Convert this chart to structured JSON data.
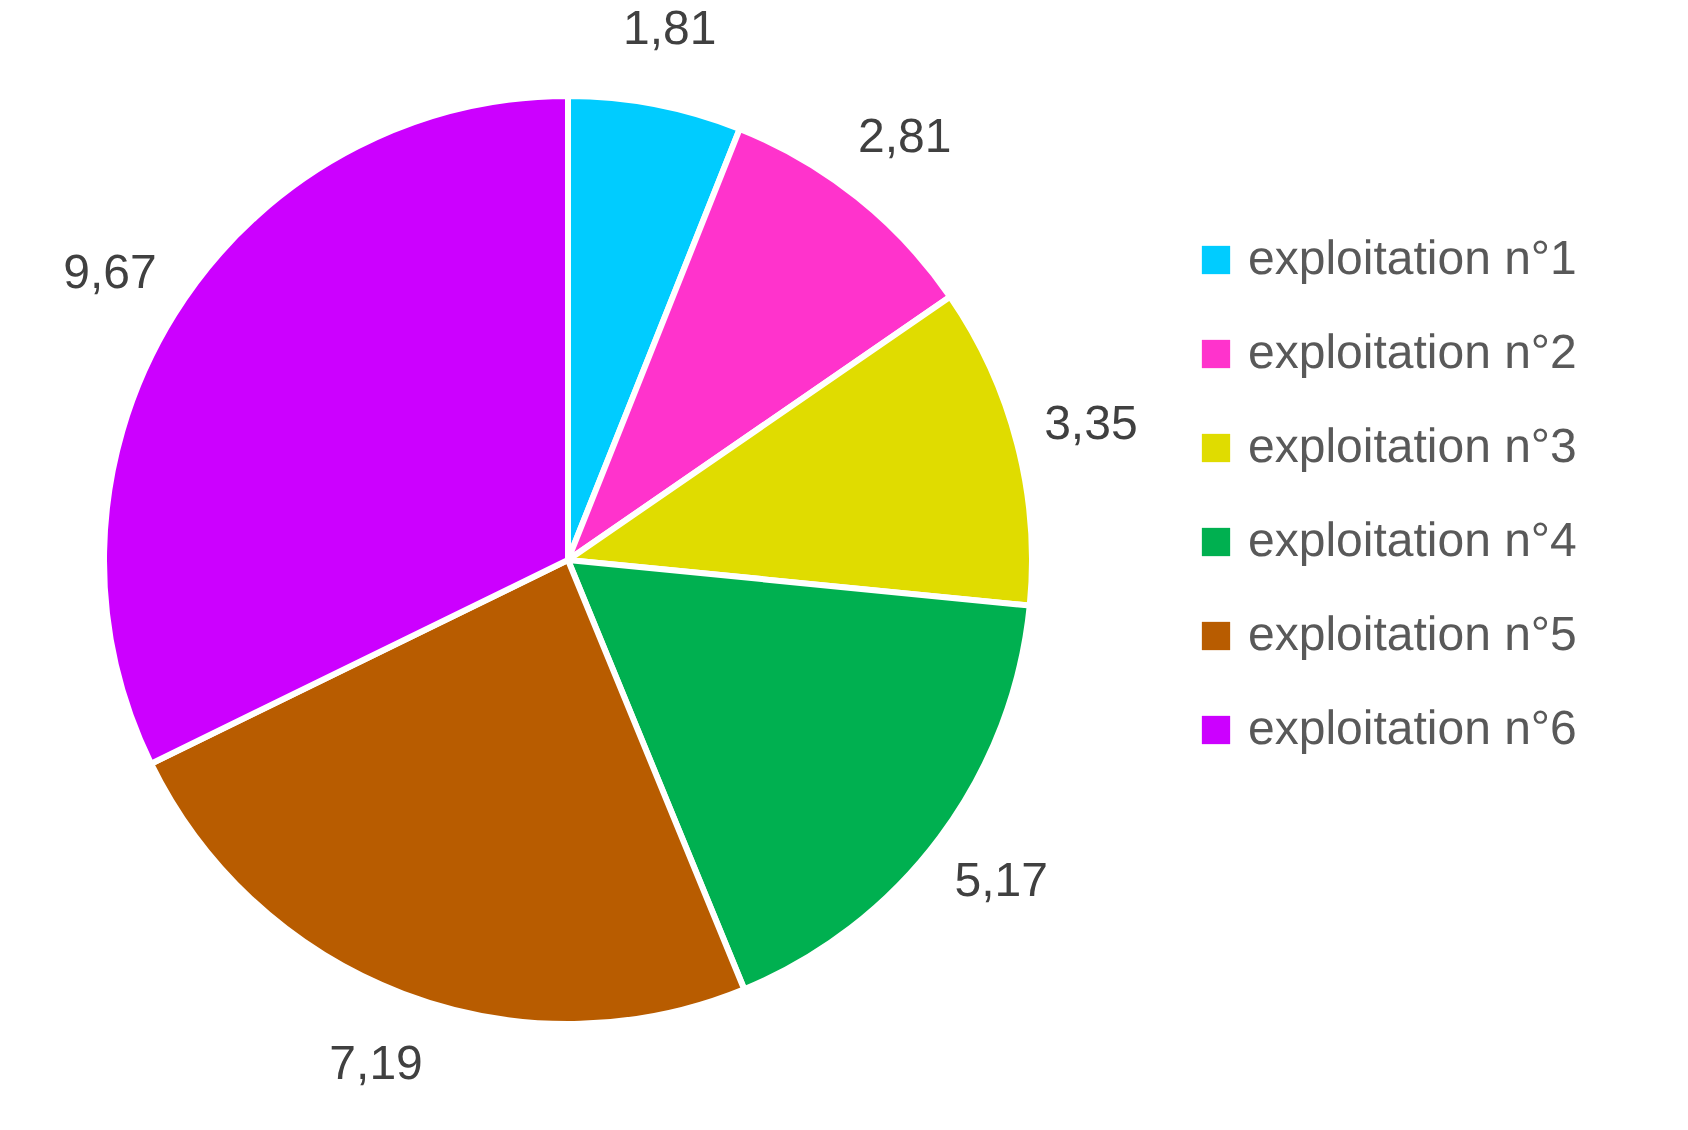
{
  "chart_data": {
    "type": "pie",
    "categories": [
      "exploitation n°1",
      "exploitation n°2",
      "exploitation n°3",
      "exploitation n°4",
      "exploitation n°5",
      "exploitation n°6"
    ],
    "values": [
      1.81,
      2.81,
      3.35,
      5.17,
      7.19,
      9.67
    ],
    "value_labels": [
      "1,81",
      "2,81",
      "3,35",
      "5,17",
      "7,19",
      "9,67"
    ],
    "colors": [
      "#00ccff",
      "#ff33cc",
      "#e0dc00",
      "#00b050",
      "#b85c00",
      "#cc00ff"
    ],
    "legend": "right"
  }
}
